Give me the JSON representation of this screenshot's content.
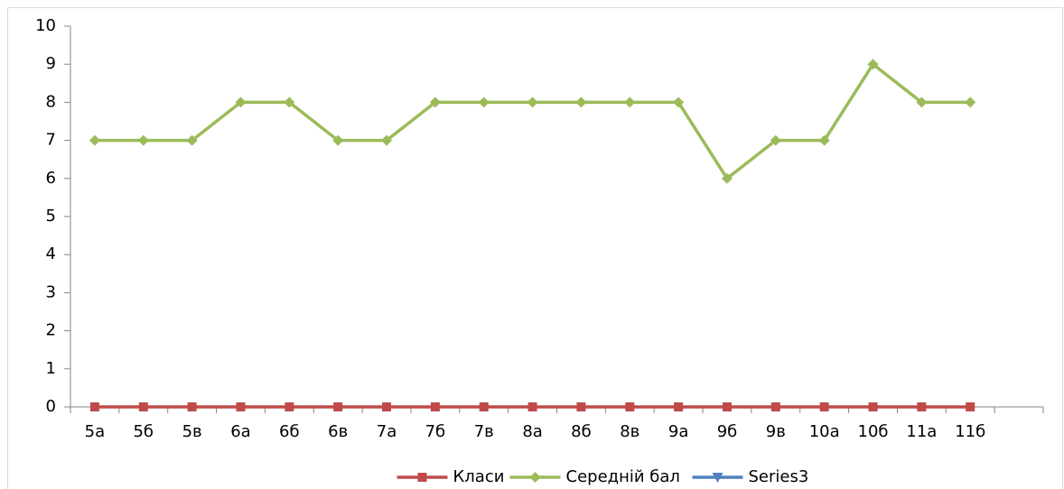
{
  "chart_data": {
    "type": "line",
    "categories": [
      "5а",
      "5б",
      "5в",
      "6а",
      "6б",
      "6в",
      "7а",
      "7б",
      "7в",
      "8а",
      "8б",
      "8в",
      "9а",
      "9б",
      "9в",
      "10а",
      "10б",
      "11а",
      "11б",
      null
    ],
    "series": [
      {
        "name": "Класи",
        "color": "#be4b48",
        "marker": "square",
        "values": [
          0,
          0,
          0,
          0,
          0,
          0,
          0,
          0,
          0,
          0,
          0,
          0,
          0,
          0,
          0,
          0,
          0,
          0,
          0,
          null
        ]
      },
      {
        "name": "Середній бал",
        "color": "#9bbb59",
        "marker": "diamond",
        "values": [
          7,
          7,
          7,
          8,
          8,
          7,
          7,
          8,
          8,
          8,
          8,
          8,
          8,
          6,
          7,
          7,
          9,
          8,
          8,
          null
        ]
      },
      {
        "name": "Series3",
        "color": "#4f81bd",
        "marker": "triangle-down",
        "values": [
          null,
          null,
          null,
          null,
          null,
          null,
          null,
          null,
          null,
          null,
          null,
          null,
          null,
          null,
          null,
          null,
          null,
          null,
          null,
          null
        ]
      }
    ],
    "ylim": [
      0,
      10
    ],
    "yticks": [
      0,
      1,
      2,
      3,
      4,
      5,
      6,
      7,
      8,
      9,
      10
    ],
    "grid": false,
    "legend": "bottom"
  }
}
